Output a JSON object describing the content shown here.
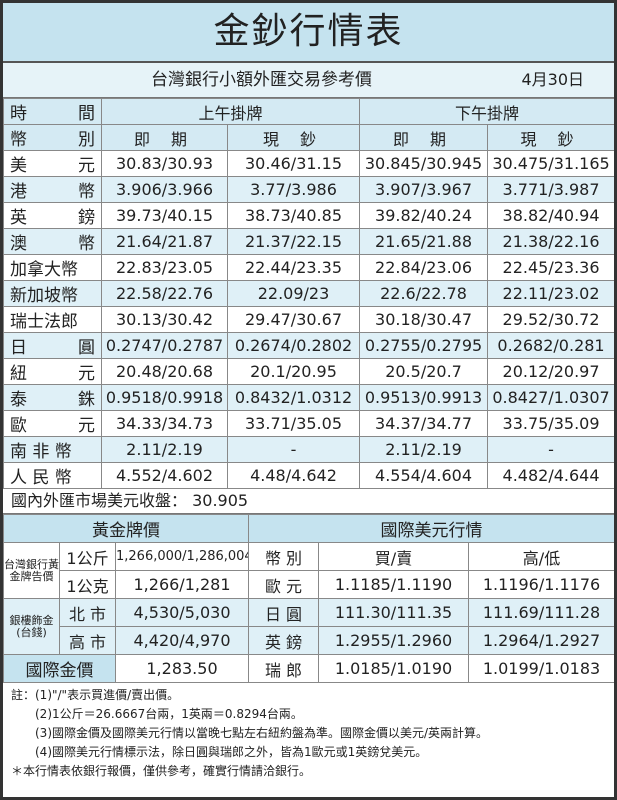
{
  "title": "金鈔行情表",
  "subtitle": "台灣銀行小額外匯交易參考價",
  "date": "4月30日",
  "header": {
    "time_l": "時",
    "time_r": "間",
    "cur_l": "幣",
    "cur_r": "別",
    "am": "上午掛牌",
    "pm": "下午掛牌",
    "spot": "即 期",
    "cash": "現 鈔"
  },
  "rows": [
    {
      "a": "美",
      "b": "元",
      "v": [
        "30.83/30.93",
        "30.46/31.15",
        "30.845/30.945",
        "30.475/31.165"
      ]
    },
    {
      "a": "港",
      "b": "幣",
      "v": [
        "3.906/3.966",
        "3.77/3.986",
        "3.907/3.967",
        "3.771/3.987"
      ]
    },
    {
      "a": "英",
      "b": "鎊",
      "v": [
        "39.73/40.15",
        "38.73/40.85",
        "39.82/40.24",
        "38.82/40.94"
      ]
    },
    {
      "a": "澳",
      "b": "幣",
      "v": [
        "21.64/21.87",
        "21.37/22.15",
        "21.65/21.88",
        "21.38/22.16"
      ]
    },
    {
      "a": "加拿大幣",
      "b": "",
      "v": [
        "22.83/23.05",
        "22.44/23.35",
        "22.84/23.06",
        "22.45/23.36"
      ]
    },
    {
      "a": "新加坡幣",
      "b": "",
      "v": [
        "22.58/22.76",
        "22.09/23",
        "22.6/22.78",
        "22.11/23.02"
      ]
    },
    {
      "a": "瑞士法郎",
      "b": "",
      "v": [
        "30.13/30.42",
        "29.47/30.67",
        "30.18/30.47",
        "29.52/30.72"
      ]
    },
    {
      "a": "日",
      "b": "圓",
      "v": [
        "0.2747/0.2787",
        "0.2674/0.2802",
        "0.2755/0.2795",
        "0.2682/0.281"
      ]
    },
    {
      "a": "紐",
      "b": "元",
      "v": [
        "20.48/20.68",
        "20.1/20.95",
        "20.5/20.7",
        "20.12/20.97"
      ]
    },
    {
      "a": "泰",
      "b": "銖",
      "v": [
        "0.9518/0.9918",
        "0.8432/1.0312",
        "0.9513/0.9913",
        "0.8427/1.0307"
      ]
    },
    {
      "a": "歐",
      "b": "元",
      "v": [
        "34.33/34.73",
        "33.71/35.05",
        "34.37/34.77",
        "33.75/35.09"
      ]
    },
    {
      "a": "南 非 幣",
      "b": "",
      "v": [
        "2.11/2.19",
        "-",
        "2.11/2.19",
        "-"
      ]
    },
    {
      "a": "人 民 幣",
      "b": "",
      "v": [
        "4.552/4.602",
        "4.48/4.642",
        "4.554/4.604",
        "4.482/4.644"
      ]
    }
  ],
  "usd_close": "國內外匯市場美元收盤： 30.905",
  "gold": {
    "title": "黃金牌價",
    "bot_label": "台灣銀行黃金牌告價",
    "kg": "1公斤",
    "kg_val": "1,266,000/1,286,004",
    "g": "1公克",
    "g_val": "1,266/1,281",
    "silver_label": "銀樓飾金(台錢)",
    "north": "北 市",
    "north_val": "4,530/5,030",
    "south": "高 市",
    "south_val": "4,420/4,970",
    "intl": "國際金價",
    "intl_val": "1,283.50"
  },
  "usd": {
    "title": "國際美元行情",
    "col_cur": "幣 別",
    "col_bs": "買/賣",
    "col_hl": "高/低",
    "rows": [
      {
        "c": "歐 元",
        "bs": "1.1185/1.1190",
        "hl": "1.1196/1.1176"
      },
      {
        "c": "日 圓",
        "bs": "111.30/111.35",
        "hl": "111.69/111.28"
      },
      {
        "c": "英 鎊",
        "bs": "1.2955/1.2960",
        "hl": "1.2964/1.2927"
      },
      {
        "c": "瑞 郎",
        "bs": "1.0185/1.0190",
        "hl": "1.0199/1.0183"
      }
    ]
  },
  "notes": [
    "註：(1)\"/\"表示買進價/賣出價。",
    "(2)1公斤＝26.6667台兩，1英兩＝0.8294台兩。",
    "(3)國際金價及國際美元行情以當晚七點左右紐約盤為準。國際金價以美元/英兩計算。",
    "(4)國際美元行情標示法，除日圓與瑞郎之外，皆為1歐元或1英鎊兌美元。",
    "＊本行情表依銀行報價，僅供參考，確實行情請洽銀行。"
  ]
}
